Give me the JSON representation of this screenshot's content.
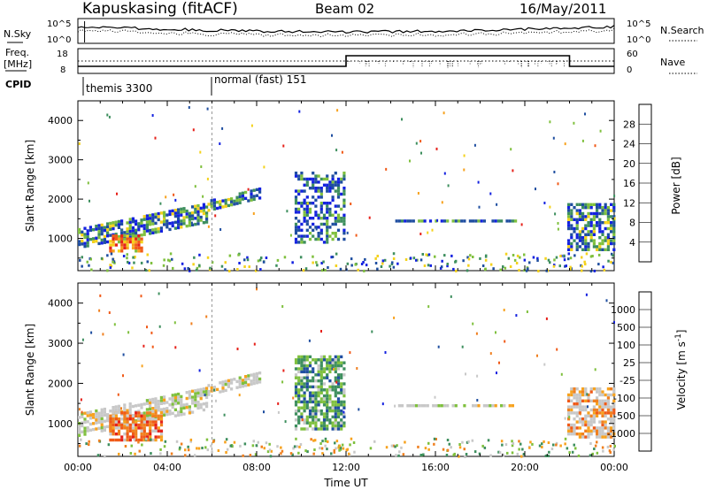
{
  "header": {
    "station": "Kapuskasing (fitACF)",
    "beam": "Beam 02",
    "date": "16/May/2011"
  },
  "noise_panel": {
    "left_label": "N.Sky",
    "right_label": "N.Search",
    "left_ticks": [
      "10^5",
      "10^0"
    ],
    "right_ticks": [
      "10^5",
      "10^0"
    ]
  },
  "freq_panel": {
    "left_label_1": "Freq.",
    "left_label_2": "[MHz]",
    "right_label": "Nave",
    "left_ticks": [
      "18",
      "8"
    ],
    "right_ticks": [
      "60",
      "0"
    ]
  },
  "cpid": {
    "label": "CPID",
    "segments": [
      {
        "name": "themis 3300",
        "start_hour": 0.3
      },
      {
        "name": "normal (fast) 151",
        "start_hour": 6.0
      }
    ]
  },
  "chart_data": [
    {
      "type": "heatmap",
      "title": "",
      "xlabel": "",
      "ylabel": "Slant Range [km]",
      "x_unit": "hours UT",
      "xlim": [
        0,
        24
      ],
      "ylim": [
        180,
        4500
      ],
      "yticks": [
        1000,
        2000,
        3000,
        4000
      ],
      "xticks": [
        0,
        4,
        8,
        12,
        16,
        20,
        24
      ],
      "colorbar": {
        "label": "Power [dB]",
        "ticks": [
          "28",
          "24",
          "20",
          "16",
          "12",
          "8",
          "4"
        ],
        "colors": [
          "#e6211a",
          "#f05a18",
          "#f7a21e",
          "#f4d21c",
          "#7fc03e",
          "#3e8f5e",
          "#1f4ea0",
          "#1321e0"
        ]
      },
      "regions": [
        {
          "name": "morning band",
          "t_start": 0.0,
          "t_end": 5.8,
          "r_start": 700,
          "r_end": 1900,
          "level": "medium"
        },
        {
          "name": "morning core",
          "t_start": 1.4,
          "t_end": 2.8,
          "r_start": 650,
          "r_end": 1100,
          "level": "high"
        },
        {
          "name": "rising band",
          "t_start": 5.8,
          "t_end": 8.2,
          "r_start": 1700,
          "r_end": 2300,
          "level": "medium"
        },
        {
          "name": "pre-noon patch",
          "t_start": 9.7,
          "t_end": 11.9,
          "r_start": 900,
          "r_end": 2700,
          "level": "low"
        },
        {
          "name": "flat line",
          "t_start": 14.2,
          "t_end": 19.6,
          "r_start": 1440,
          "r_end": 1480,
          "level": "low"
        },
        {
          "name": "evening band",
          "t_start": 21.9,
          "t_end": 24.0,
          "r_start": 700,
          "r_end": 1900,
          "level": "medium"
        }
      ]
    },
    {
      "type": "heatmap",
      "title": "",
      "xlabel": "Time UT",
      "ylabel": "Slant Range [km]",
      "x_unit": "hours UT",
      "xlim": [
        0,
        24
      ],
      "ylim": [
        180,
        4500
      ],
      "yticks": [
        1000,
        2000,
        3000,
        4000
      ],
      "xticks": [
        0,
        4,
        8,
        12,
        16,
        20,
        24
      ],
      "xtick_labels": [
        "00:00",
        "04:00",
        "08:00",
        "12:00",
        "16:00",
        "20:00",
        "00:00"
      ],
      "colorbar": {
        "label": "Velocity [m s^-1]",
        "ticks": [
          "1000",
          "500",
          "100",
          "25",
          "-25",
          "-100",
          "-500",
          "-1000"
        ],
        "colors": [
          "#1321e0",
          "#1f4ea0",
          "#3e8f5e",
          "#7fc03e",
          "#c8c8c8",
          "#f7a21e",
          "#f08020",
          "#f05a18",
          "#e6211a"
        ]
      },
      "regions": [
        {
          "name": "morning band",
          "t_start": 0.0,
          "t_end": 5.8,
          "r_start": 700,
          "r_end": 1900,
          "level": "grey"
        },
        {
          "name": "morning core",
          "t_start": 1.4,
          "t_end": 3.8,
          "r_start": 600,
          "r_end": 1300,
          "level": "orange"
        },
        {
          "name": "rising band",
          "t_start": 5.8,
          "t_end": 8.2,
          "r_start": 1700,
          "r_end": 2300,
          "level": "grey"
        },
        {
          "name": "pre-noon patch",
          "t_start": 9.7,
          "t_end": 11.9,
          "r_start": 900,
          "r_end": 2700,
          "level": "green"
        },
        {
          "name": "flat line",
          "t_start": 14.2,
          "t_end": 19.6,
          "r_start": 1440,
          "r_end": 1480,
          "level": "grey"
        },
        {
          "name": "evening band",
          "t_start": 21.9,
          "t_end": 24.0,
          "r_start": 700,
          "r_end": 1900,
          "level": "grey-orange"
        }
      ]
    }
  ]
}
